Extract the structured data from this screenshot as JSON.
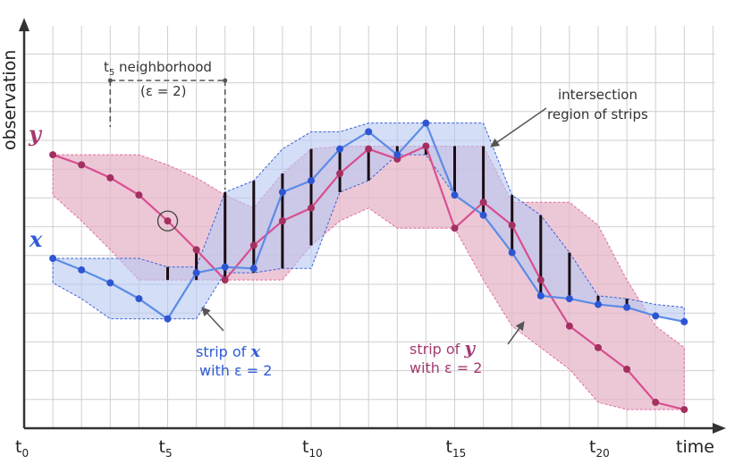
{
  "colors": {
    "x_line": "#5b8ce6",
    "x_point": "#2e56d3",
    "x_fill": "#b7c8f2",
    "x_border": "#3b63d6",
    "y_line": "#d94f8f",
    "y_point": "#a3305f",
    "y_fill": "#e6b6c9",
    "y_border": "#e26ba0",
    "overlap_bar": "#1a0d14",
    "grid": "#cfcfcf",
    "axis": "#333333",
    "annotation": "#555555",
    "x_label": "#2e5bd6",
    "y_label": "#a33a72"
  },
  "chart_data": {
    "type": "line",
    "title": "",
    "xlabel": "time",
    "ylabel": "observation",
    "xlim": [
      0,
      24
    ],
    "ylim": [
      0,
      13.5
    ],
    "grid": true,
    "epsilon": 2,
    "x": [
      1,
      2,
      3,
      4,
      5,
      6,
      7,
      8,
      9,
      10,
      11,
      12,
      13,
      14,
      15,
      16,
      17,
      18,
      19,
      20,
      21,
      22,
      23
    ],
    "x_ticks": [
      {
        "value": 0,
        "main": "t",
        "sub": "0"
      },
      {
        "value": 5,
        "main": "t",
        "sub": "5"
      },
      {
        "value": 10,
        "main": "t",
        "sub": "10"
      },
      {
        "value": 15,
        "main": "t",
        "sub": "15"
      },
      {
        "value": 20,
        "main": "t",
        "sub": "20"
      }
    ],
    "series": [
      {
        "name": "x",
        "label": "x",
        "values": [
          5.9,
          5.5,
          5.05,
          4.5,
          3.8,
          5.4,
          5.6,
          5.55,
          8.2,
          8.6,
          9.7,
          10.3,
          9.5,
          10.6,
          8.1,
          7.4,
          6.1,
          4.6,
          4.5,
          4.3,
          4.2,
          3.9,
          3.7
        ],
        "band_lower": [
          5.05,
          4.5,
          3.8,
          3.8,
          3.8,
          3.8,
          5.4,
          5.4,
          5.55,
          5.55,
          8.2,
          8.6,
          9.5,
          9.5,
          8.1,
          7.4,
          6.1,
          4.6,
          4.5,
          4.3,
          4.2,
          3.9,
          3.7
        ],
        "band_upper": [
          5.9,
          5.9,
          5.9,
          5.9,
          5.6,
          5.6,
          8.2,
          8.6,
          9.7,
          10.3,
          10.3,
          10.6,
          10.6,
          10.6,
          10.6,
          10.6,
          8.1,
          7.4,
          6.1,
          4.6,
          4.5,
          4.3,
          4.2
        ]
      },
      {
        "name": "y",
        "label": "y",
        "values": [
          9.5,
          9.15,
          8.7,
          8.1,
          7.2,
          6.2,
          5.15,
          6.35,
          7.2,
          7.65,
          8.85,
          9.7,
          9.35,
          9.8,
          6.95,
          7.85,
          7.05,
          5.15,
          3.55,
          2.8,
          2.05,
          0.9,
          0.65
        ],
        "band_lower": [
          8.1,
          7.2,
          6.2,
          5.15,
          5.15,
          5.15,
          5.15,
          5.15,
          5.15,
          6.35,
          7.2,
          7.65,
          6.95,
          6.95,
          6.95,
          5.15,
          3.55,
          2.8,
          2.05,
          0.9,
          0.65,
          0.65,
          0.65
        ],
        "band_upper": [
          9.5,
          9.5,
          9.5,
          9.5,
          9.15,
          8.7,
          8.1,
          7.65,
          8.85,
          9.7,
          9.8,
          9.8,
          9.8,
          9.8,
          9.8,
          9.8,
          7.85,
          7.85,
          7.85,
          7.05,
          5.15,
          3.55,
          2.8
        ]
      }
    ],
    "overlap_bars": [
      {
        "x": 5,
        "low": 5.15,
        "high": 5.6
      },
      {
        "x": 6,
        "low": 5.15,
        "high": 6.2
      },
      {
        "x": 7,
        "low": 5.15,
        "high": 8.2
      },
      {
        "x": 8,
        "low": 5.4,
        "high": 8.6
      },
      {
        "x": 9,
        "low": 5.55,
        "high": 8.85
      },
      {
        "x": 10,
        "low": 6.35,
        "high": 9.7
      },
      {
        "x": 11,
        "low": 8.2,
        "high": 9.8
      },
      {
        "x": 12,
        "low": 8.6,
        "high": 9.8
      },
      {
        "x": 13,
        "low": 9.5,
        "high": 9.8
      },
      {
        "x": 14,
        "low": 9.5,
        "high": 9.8
      },
      {
        "x": 15,
        "low": 8.1,
        "high": 9.8
      },
      {
        "x": 16,
        "low": 7.4,
        "high": 9.8
      },
      {
        "x": 17,
        "low": 6.1,
        "high": 8.1
      },
      {
        "x": 18,
        "low": 4.6,
        "high": 7.4
      },
      {
        "x": 19,
        "low": 4.5,
        "high": 6.1
      },
      {
        "x": 20,
        "low": 4.3,
        "high": 4.6
      },
      {
        "x": 21,
        "low": 4.2,
        "high": 4.5
      }
    ],
    "highlight_point": {
      "series": "y",
      "x": 5,
      "value": 7.2
    },
    "neighborhood": {
      "center": 5,
      "from": 3,
      "to": 7
    }
  },
  "annotations": {
    "series_label_x": "x",
    "series_label_y": "y",
    "neighborhood_title_main": "t",
    "neighborhood_title_sub": "5",
    "neighborhood_title_rest": " neighborhood",
    "neighborhood_eps": "(ε = 2)",
    "intersection_line1": "intersection",
    "intersection_line2": "region of strips",
    "strip_x_prefix": "strip of ",
    "strip_x_var": "x",
    "strip_x_line2": "with ε = 2",
    "strip_y_prefix": "strip of ",
    "strip_y_var": "y",
    "strip_y_line2": "with ε = 2"
  }
}
